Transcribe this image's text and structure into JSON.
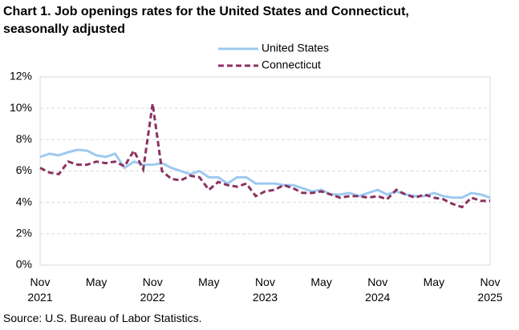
{
  "chart_data": {
    "type": "line",
    "title": "Chart 1. Job openings rates for the United States and Connecticut, seasonally adjusted",
    "source": "Source: U.S. Bureau of Labor Statistics.",
    "categories": [
      "Nov 2021",
      null,
      null,
      null,
      null,
      null,
      "May",
      null,
      null,
      null,
      null,
      null,
      "Nov 2022",
      null,
      null,
      null,
      null,
      null,
      "May",
      null,
      null,
      null,
      null,
      null,
      "Nov 2023",
      null,
      null,
      null,
      null,
      null,
      "May",
      null,
      null,
      null,
      null,
      null,
      "Nov 2024",
      null,
      null,
      null,
      null,
      null,
      "May",
      null,
      null,
      null,
      null,
      null,
      "Nov 2025"
    ],
    "series": [
      {
        "name": "United States",
        "color": "#9dc9f0",
        "dash": false,
        "values": [
          6.9,
          7.1,
          7.0,
          7.2,
          7.35,
          7.3,
          7.0,
          6.9,
          7.1,
          6.2,
          6.6,
          6.4,
          6.4,
          6.5,
          6.2,
          6.0,
          5.8,
          6.0,
          5.6,
          5.6,
          5.2,
          5.6,
          5.6,
          5.2,
          5.2,
          5.2,
          5.1,
          5.1,
          4.9,
          4.7,
          4.8,
          4.5,
          4.5,
          4.6,
          4.4,
          4.6,
          4.8,
          4.5,
          4.7,
          4.5,
          4.4,
          4.4,
          4.6,
          4.4,
          4.3,
          4.3,
          4.6,
          4.5,
          4.3
        ]
      },
      {
        "name": "Connecticut",
        "color": "#8b3360",
        "dash": true,
        "values": [
          6.2,
          5.9,
          5.8,
          6.6,
          6.4,
          6.4,
          6.6,
          6.5,
          6.6,
          6.3,
          7.3,
          6.1,
          10.3,
          6.0,
          5.5,
          5.4,
          5.7,
          5.6,
          4.8,
          5.3,
          5.1,
          5.0,
          5.2,
          4.4,
          4.7,
          4.8,
          5.1,
          4.9,
          4.6,
          4.6,
          4.7,
          4.5,
          4.3,
          4.4,
          4.4,
          4.3,
          4.4,
          4.2,
          4.8,
          4.5,
          4.3,
          4.5,
          4.3,
          4.2,
          3.9,
          3.7,
          4.3,
          4.1,
          4.1
        ]
      }
    ],
    "ylim": [
      0,
      12
    ],
    "yticks": [
      {
        "value": 0,
        "label": "0%"
      },
      {
        "value": 2,
        "label": "2%"
      },
      {
        "value": 4,
        "label": "4%"
      },
      {
        "value": 6,
        "label": "6%"
      },
      {
        "value": 8,
        "label": "8%"
      },
      {
        "value": 10,
        "label": "10%"
      },
      {
        "value": 12,
        "label": "12%"
      }
    ],
    "grid": true
  }
}
